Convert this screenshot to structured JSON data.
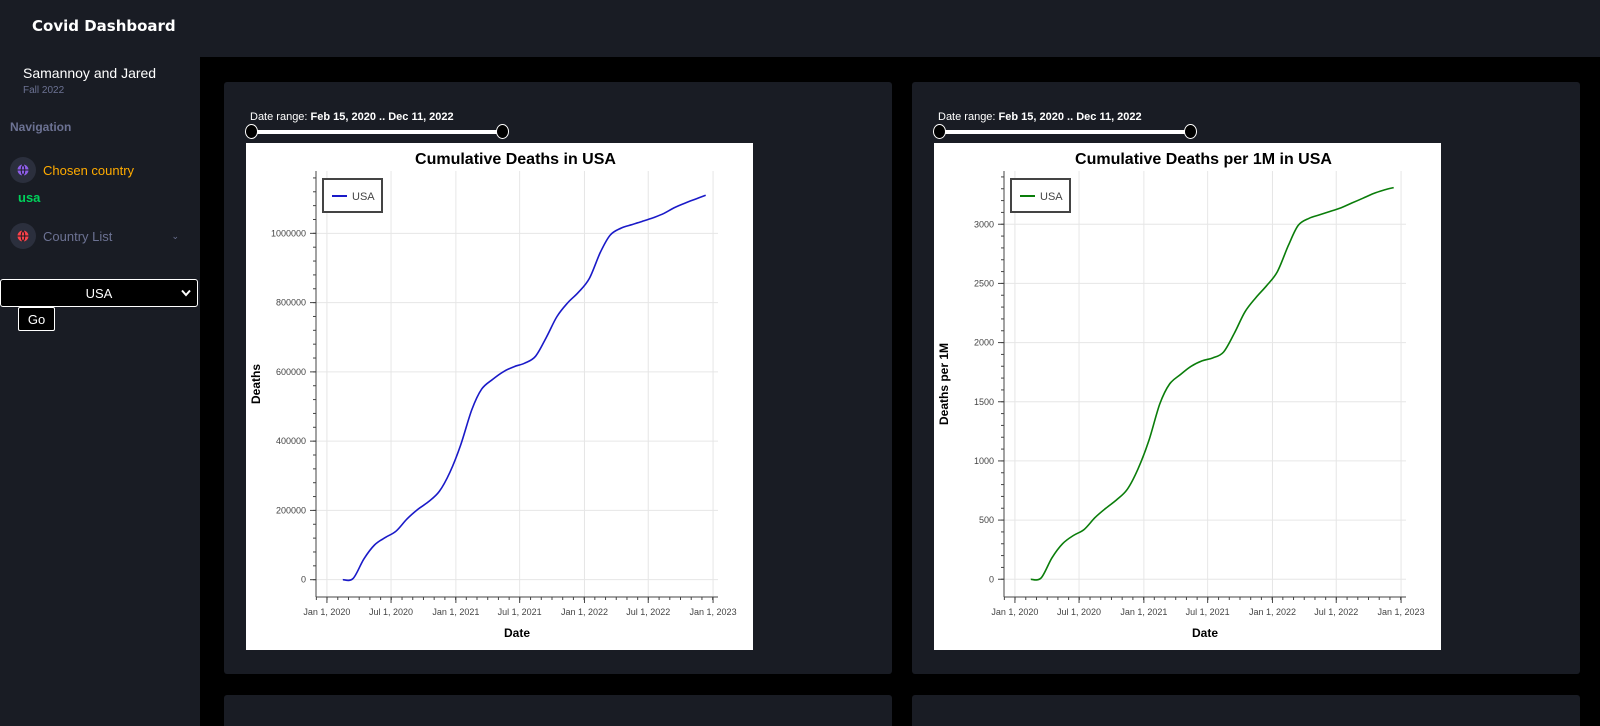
{
  "app": {
    "title": "Covid Dashboard"
  },
  "user": {
    "name": "Samannoy and Jared",
    "subtitle": "Fall 2022"
  },
  "sidebar": {
    "heading": "Navigation",
    "items": [
      {
        "label": "Chosen country",
        "icon": "globe-icon"
      },
      {
        "label": "Country List",
        "icon": "globe-icon"
      }
    ],
    "chosen_value": "usa"
  },
  "country_select": {
    "value": "USA"
  },
  "go_button": {
    "label": "Go"
  },
  "date_range": {
    "label": "Date range:",
    "value": "Feb 15, 2020 .. Dec 11, 2022"
  },
  "colors": {
    "panel": "#191c24",
    "chosen": "#ffab00",
    "value": "#00d25b",
    "line1": "#1a1ac8",
    "line2": "#0a7d0a"
  },
  "chart_data": [
    {
      "type": "line",
      "title": "Cumulative Deaths in USA",
      "xlabel": "Date",
      "ylabel": "Deaths",
      "xlim": [
        "2019-12-01",
        "2023-01-15"
      ],
      "ylim": [
        -50000,
        1180000
      ],
      "xticks": [
        "2020-01-01",
        "2020-07-01",
        "2021-01-01",
        "2021-07-01",
        "2022-01-01",
        "2022-07-01",
        "2023-01-01"
      ],
      "xtick_labels": [
        "Jan  1, 2020",
        "Jul  1, 2020",
        "Jan  1, 2021",
        "Jul  1, 2021",
        "Jan  1, 2022",
        "Jul  1, 2022",
        "Jan  1, 2023"
      ],
      "yticks": [
        0,
        200000,
        400000,
        600000,
        800000,
        1000000
      ],
      "ytick_labels": [
        "0",
        "200000",
        "400000",
        "600000",
        "800000",
        "1000000"
      ],
      "legend": "top-left",
      "grid": true,
      "series": [
        {
          "name": "USA",
          "color": "#1a1ac8",
          "x": [
            "2020-02-15",
            "2020-03-15",
            "2020-04-15",
            "2020-05-15",
            "2020-06-15",
            "2020-07-15",
            "2020-08-15",
            "2020-09-15",
            "2020-10-15",
            "2020-11-15",
            "2020-12-15",
            "2021-01-15",
            "2021-02-15",
            "2021-03-15",
            "2021-04-15",
            "2021-05-15",
            "2021-06-15",
            "2021-07-15",
            "2021-08-15",
            "2021-09-15",
            "2021-10-15",
            "2021-11-15",
            "2021-12-15",
            "2022-01-15",
            "2022-02-15",
            "2022-03-15",
            "2022-04-15",
            "2022-05-15",
            "2022-06-15",
            "2022-07-15",
            "2022-08-15",
            "2022-09-15",
            "2022-10-15",
            "2022-11-15",
            "2022-12-11"
          ],
          "values": [
            0,
            3000,
            60000,
            100000,
            122000,
            140000,
            175000,
            203000,
            225000,
            255000,
            310000,
            390000,
            490000,
            550000,
            578000,
            600000,
            615000,
            625000,
            645000,
            700000,
            760000,
            800000,
            830000,
            870000,
            945000,
            995000,
            1015000,
            1025000,
            1035000,
            1045000,
            1058000,
            1075000,
            1088000,
            1100000,
            1110000
          ]
        }
      ]
    },
    {
      "type": "line",
      "title": "Cumulative Deaths per 1M in USA",
      "xlabel": "Date",
      "ylabel": "Deaths per 1M",
      "xlim": [
        "2019-12-01",
        "2023-01-15"
      ],
      "ylim": [
        -150,
        3450
      ],
      "xticks": [
        "2020-01-01",
        "2020-07-01",
        "2021-01-01",
        "2021-07-01",
        "2022-01-01",
        "2022-07-01",
        "2023-01-01"
      ],
      "xtick_labels": [
        "Jan  1, 2020",
        "Jul  1, 2020",
        "Jan  1, 2021",
        "Jul  1, 2021",
        "Jan  1, 2022",
        "Jul  1, 2022",
        "Jan  1, 2023"
      ],
      "yticks": [
        0,
        500,
        1000,
        1500,
        2000,
        2500,
        3000
      ],
      "ytick_labels": [
        "0",
        "500",
        "1000",
        "1500",
        "2000",
        "2500",
        "3000"
      ],
      "legend": "top-left",
      "grid": true,
      "series": [
        {
          "name": "USA",
          "color": "#0a7d0a",
          "x": [
            "2020-02-15",
            "2020-03-15",
            "2020-04-15",
            "2020-05-15",
            "2020-06-15",
            "2020-07-15",
            "2020-08-15",
            "2020-09-15",
            "2020-10-15",
            "2020-11-15",
            "2020-12-15",
            "2021-01-15",
            "2021-02-15",
            "2021-03-15",
            "2021-04-15",
            "2021-05-15",
            "2021-06-15",
            "2021-07-15",
            "2021-08-15",
            "2021-09-15",
            "2021-10-15",
            "2021-11-15",
            "2021-12-15",
            "2022-01-15",
            "2022-02-15",
            "2022-03-15",
            "2022-04-15",
            "2022-05-15",
            "2022-06-15",
            "2022-07-15",
            "2022-08-15",
            "2022-09-15",
            "2022-10-15",
            "2022-11-15",
            "2022-12-11"
          ],
          "values": [
            0,
            10,
            180,
            300,
            370,
            420,
            520,
            600,
            670,
            760,
            930,
            1170,
            1480,
            1650,
            1730,
            1800,
            1845,
            1870,
            1920,
            2080,
            2260,
            2380,
            2480,
            2600,
            2820,
            2990,
            3050,
            3080,
            3110,
            3140,
            3180,
            3220,
            3260,
            3290,
            3310
          ]
        }
      ]
    }
  ]
}
